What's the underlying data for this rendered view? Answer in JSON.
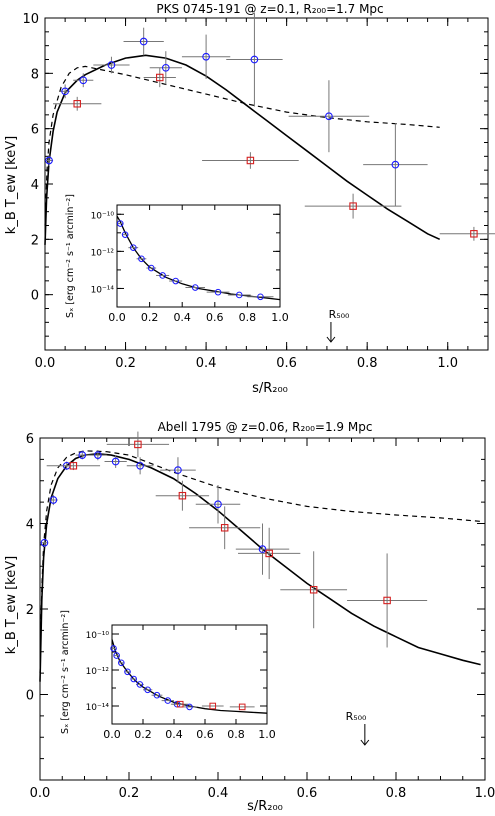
{
  "chart_data": [
    {
      "type": "scatter",
      "title": "PKS 0745-191 @ z=0.1, R₂₀₀=1.7 Mpc",
      "xlabel": "s/R₂₀₀",
      "ylabel": "k_B T_ew [keV]",
      "xlim": [
        0,
        1.1
      ],
      "ylim": [
        -2,
        10
      ],
      "x_ticks": [
        0.0,
        0.2,
        0.4,
        0.6,
        0.8,
        1.0
      ],
      "x_tick_labels": [
        "0.0",
        "0.2",
        "0.4",
        "0.6",
        "0.8",
        "1.0"
      ],
      "y_ticks": [
        0,
        2,
        4,
        6,
        8,
        10
      ],
      "y_tick_labels": [
        "0",
        "2",
        "4",
        "6",
        "8",
        "10"
      ],
      "annotation": {
        "text": "R₅₀₀",
        "x": 0.71
      },
      "series": [
        {
          "color": "#1a1aff",
          "marker": "circle",
          "points": [
            {
              "x": 0.01,
              "y": 4.85,
              "xerr": 0.01,
              "yerr": 0.2
            },
            {
              "x": 0.05,
              "y": 7.35,
              "xerr": 0.012,
              "yerr": 0.25
            },
            {
              "x": 0.095,
              "y": 7.75,
              "xerr": 0.025,
              "yerr": 0.25
            },
            {
              "x": 0.165,
              "y": 8.3,
              "xerr": 0.045,
              "yerr": 0.3
            },
            {
              "x": 0.245,
              "y": 9.15,
              "xerr": 0.05,
              "yerr": 0.5
            },
            {
              "x": 0.3,
              "y": 8.2,
              "xerr": 0.04,
              "yerr": 0.6
            },
            {
              "x": 0.4,
              "y": 8.6,
              "xerr": 0.06,
              "yerr": 0.8
            },
            {
              "x": 0.52,
              "y": 8.5,
              "xerr": 0.07,
              "yerr": 1.7
            },
            {
              "x": 0.705,
              "y": 6.45,
              "xerr": 0.1,
              "yerr": 1.3
            },
            {
              "x": 0.87,
              "y": 4.7,
              "xerr": 0.08,
              "yerr": 1.5
            }
          ]
        },
        {
          "color": "#d42020",
          "marker": "square",
          "points": [
            {
              "x": 0.08,
              "y": 6.9,
              "xerr": 0.06,
              "yerr": 0.25
            },
            {
              "x": 0.285,
              "y": 7.85,
              "xerr": 0.04,
              "yerr": 0.35
            },
            {
              "x": 0.51,
              "y": 4.85,
              "xerr": 0.12,
              "yerr": 0.3
            },
            {
              "x": 0.765,
              "y": 3.2,
              "xerr": 0.12,
              "yerr": 0.45
            },
            {
              "x": 1.065,
              "y": 2.2,
              "xerr": 0.085,
              "yerr": 0.25
            }
          ]
        }
      ],
      "model_solid": [
        [
          0.0,
          1.8
        ],
        [
          0.004,
          3.5
        ],
        [
          0.01,
          4.8
        ],
        [
          0.02,
          5.9
        ],
        [
          0.03,
          6.6
        ],
        [
          0.05,
          7.3
        ],
        [
          0.08,
          7.75
        ],
        [
          0.1,
          7.95
        ],
        [
          0.15,
          8.3
        ],
        [
          0.2,
          8.55
        ],
        [
          0.25,
          8.65
        ],
        [
          0.3,
          8.55
        ],
        [
          0.35,
          8.3
        ],
        [
          0.4,
          7.9
        ],
        [
          0.45,
          7.4
        ],
        [
          0.5,
          6.85
        ],
        [
          0.55,
          6.3
        ],
        [
          0.6,
          5.75
        ],
        [
          0.65,
          5.2
        ],
        [
          0.7,
          4.65
        ],
        [
          0.75,
          4.1
        ],
        [
          0.8,
          3.6
        ],
        [
          0.85,
          3.1
        ],
        [
          0.9,
          2.65
        ],
        [
          0.95,
          2.2
        ],
        [
          0.98,
          2.0
        ]
      ],
      "model_dashed": [
        [
          0.0,
          2.5
        ],
        [
          0.005,
          4.5
        ],
        [
          0.01,
          5.5
        ],
        [
          0.02,
          6.5
        ],
        [
          0.04,
          7.5
        ],
        [
          0.06,
          8.0
        ],
        [
          0.08,
          8.2
        ],
        [
          0.1,
          8.25
        ],
        [
          0.15,
          8.1
        ],
        [
          0.2,
          7.95
        ],
        [
          0.3,
          7.6
        ],
        [
          0.4,
          7.25
        ],
        [
          0.5,
          6.9
        ],
        [
          0.6,
          6.6
        ],
        [
          0.7,
          6.4
        ],
        [
          0.8,
          6.25
        ],
        [
          0.9,
          6.15
        ],
        [
          0.98,
          6.05
        ]
      ],
      "inset": {
        "xlim": [
          0,
          1
        ],
        "ylim_log": [
          -15,
          -9.5
        ],
        "ylabel": "Sₓ [erg cm⁻² s⁻¹ arcmin⁻²]",
        "x_ticks": [
          0.0,
          0.2,
          0.4,
          0.6,
          0.8,
          1.0
        ],
        "x_tick_labels": [
          "0.0",
          "0.2",
          "0.4",
          "0.6",
          "0.8",
          "1.0"
        ],
        "y_ticks": [
          -10,
          -12,
          -14
        ],
        "y_tick_labels": [
          "10⁻¹⁰",
          "10⁻¹²",
          "10⁻¹⁴"
        ],
        "points": [
          {
            "x": 0.02,
            "y": -10.5,
            "xerr": 0.02
          },
          {
            "x": 0.05,
            "y": -11.1,
            "xerr": 0.02
          },
          {
            "x": 0.1,
            "y": -11.8,
            "xerr": 0.03
          },
          {
            "x": 0.15,
            "y": -12.4,
            "xerr": 0.03
          },
          {
            "x": 0.21,
            "y": -12.9,
            "xerr": 0.03
          },
          {
            "x": 0.28,
            "y": -13.3,
            "xerr": 0.04
          },
          {
            "x": 0.36,
            "y": -13.6,
            "xerr": 0.04
          },
          {
            "x": 0.48,
            "y": -13.95,
            "xerr": 0.06
          },
          {
            "x": 0.62,
            "y": -14.2,
            "xerr": 0.07
          },
          {
            "x": 0.75,
            "y": -14.35,
            "xerr": 0.07
          },
          {
            "x": 0.88,
            "y": -14.45,
            "xerr": 0.08
          }
        ],
        "model": [
          [
            0.0,
            -10.1
          ],
          [
            0.02,
            -10.4
          ],
          [
            0.05,
            -11.0
          ],
          [
            0.1,
            -11.8
          ],
          [
            0.15,
            -12.4
          ],
          [
            0.2,
            -12.85
          ],
          [
            0.3,
            -13.4
          ],
          [
            0.4,
            -13.75
          ],
          [
            0.5,
            -14.0
          ],
          [
            0.6,
            -14.15
          ],
          [
            0.7,
            -14.3
          ],
          [
            0.8,
            -14.4
          ],
          [
            0.9,
            -14.5
          ],
          [
            1.0,
            -14.6
          ]
        ]
      }
    },
    {
      "type": "scatter",
      "title": "Abell 1795 @ z=0.06, R₂₀₀=1.9 Mpc",
      "xlabel": "s/R₂₀₀",
      "ylabel": "k_B T_ew [keV]",
      "xlim": [
        0,
        1.0
      ],
      "ylim": [
        -2,
        6
      ],
      "x_ticks": [
        0.0,
        0.2,
        0.4,
        0.6,
        0.8,
        1.0
      ],
      "x_tick_labels": [
        "0.0",
        "0.2",
        "0.4",
        "0.6",
        "0.8",
        "1.0"
      ],
      "y_ticks": [
        0,
        2,
        4,
        6
      ],
      "y_tick_labels": [
        "0",
        "2",
        "4",
        "6"
      ],
      "annotation": {
        "text": "R₅₀₀",
        "x": 0.73
      },
      "series": [
        {
          "color": "#1a1aff",
          "marker": "circle",
          "points": [
            {
              "x": 0.01,
              "y": 3.55,
              "xerr": 0.007,
              "yerr": 0.1
            },
            {
              "x": 0.03,
              "y": 4.55,
              "xerr": 0.01,
              "yerr": 0.12
            },
            {
              "x": 0.06,
              "y": 5.35,
              "xerr": 0.012,
              "yerr": 0.1
            },
            {
              "x": 0.095,
              "y": 5.6,
              "xerr": 0.015,
              "yerr": 0.1
            },
            {
              "x": 0.13,
              "y": 5.6,
              "xerr": 0.02,
              "yerr": 0.12
            },
            {
              "x": 0.17,
              "y": 5.45,
              "xerr": 0.025,
              "yerr": 0.15
            },
            {
              "x": 0.225,
              "y": 5.35,
              "xerr": 0.03,
              "yerr": 0.2
            },
            {
              "x": 0.31,
              "y": 5.25,
              "xerr": 0.04,
              "yerr": 0.3
            },
            {
              "x": 0.4,
              "y": 4.45,
              "xerr": 0.05,
              "yerr": 0.45
            },
            {
              "x": 0.5,
              "y": 3.4,
              "xerr": 0.06,
              "yerr": 0.6
            }
          ]
        },
        {
          "color": "#d42020",
          "marker": "square",
          "points": [
            {
              "x": 0.075,
              "y": 5.35,
              "xerr": 0.06,
              "yerr": 0.1
            },
            {
              "x": 0.22,
              "y": 5.85,
              "xerr": 0.07,
              "yerr": 0.3
            },
            {
              "x": 0.32,
              "y": 4.65,
              "xerr": 0.06,
              "yerr": 0.35
            },
            {
              "x": 0.415,
              "y": 3.9,
              "xerr": 0.08,
              "yerr": 0.5
            },
            {
              "x": 0.515,
              "y": 3.3,
              "xerr": 0.07,
              "yerr": 0.6
            },
            {
              "x": 0.615,
              "y": 2.45,
              "xerr": 0.075,
              "yerr": 0.9
            },
            {
              "x": 0.78,
              "y": 2.2,
              "xerr": 0.09,
              "yerr": 1.1
            }
          ]
        }
      ],
      "model_solid": [
        [
          0.0,
          0.3
        ],
        [
          0.004,
          2.2
        ],
        [
          0.008,
          3.2
        ],
        [
          0.015,
          4.0
        ],
        [
          0.025,
          4.6
        ],
        [
          0.04,
          5.05
        ],
        [
          0.06,
          5.35
        ],
        [
          0.08,
          5.52
        ],
        [
          0.1,
          5.6
        ],
        [
          0.13,
          5.63
        ],
        [
          0.16,
          5.6
        ],
        [
          0.2,
          5.5
        ],
        [
          0.25,
          5.3
        ],
        [
          0.3,
          5.05
        ],
        [
          0.35,
          4.7
        ],
        [
          0.4,
          4.3
        ],
        [
          0.45,
          3.85
        ],
        [
          0.5,
          3.4
        ],
        [
          0.55,
          3.0
        ],
        [
          0.6,
          2.6
        ],
        [
          0.65,
          2.25
        ],
        [
          0.7,
          1.9
        ],
        [
          0.75,
          1.6
        ],
        [
          0.8,
          1.35
        ],
        [
          0.85,
          1.1
        ],
        [
          0.9,
          0.95
        ],
        [
          0.95,
          0.8
        ],
        [
          0.99,
          0.7
        ]
      ],
      "model_dashed": [
        [
          0.0,
          0.5
        ],
        [
          0.004,
          2.5
        ],
        [
          0.008,
          3.5
        ],
        [
          0.015,
          4.3
        ],
        [
          0.025,
          4.9
        ],
        [
          0.04,
          5.3
        ],
        [
          0.06,
          5.55
        ],
        [
          0.08,
          5.65
        ],
        [
          0.1,
          5.7
        ],
        [
          0.15,
          5.68
        ],
        [
          0.2,
          5.6
        ],
        [
          0.25,
          5.4
        ],
        [
          0.3,
          5.2
        ],
        [
          0.4,
          4.85
        ],
        [
          0.5,
          4.6
        ],
        [
          0.6,
          4.4
        ],
        [
          0.7,
          4.28
        ],
        [
          0.8,
          4.2
        ],
        [
          0.9,
          4.13
        ],
        [
          0.99,
          4.05
        ]
      ],
      "inset": {
        "xlim": [
          0,
          1
        ],
        "ylim_log": [
          -15,
          -9.5
        ],
        "ylabel": "Sₓ [erg cm⁻² s⁻¹ arcmin⁻²]",
        "x_ticks": [
          0.0,
          0.2,
          0.4,
          0.6,
          0.8,
          1.0
        ],
        "x_tick_labels": [
          "0.0",
          "0.2",
          "0.4",
          "0.6",
          "0.8",
          "1.0"
        ],
        "y_ticks": [
          -10,
          -12,
          -14
        ],
        "y_tick_labels": [
          "10⁻¹⁰",
          "10⁻¹²",
          "10⁻¹⁴"
        ],
        "points": [
          {
            "x": 0.01,
            "y": -10.8,
            "xerr": 0.01
          },
          {
            "x": 0.03,
            "y": -11.2,
            "xerr": 0.015
          },
          {
            "x": 0.06,
            "y": -11.6,
            "xerr": 0.015
          },
          {
            "x": 0.1,
            "y": -12.1,
            "xerr": 0.02
          },
          {
            "x": 0.14,
            "y": -12.5,
            "xerr": 0.02
          },
          {
            "x": 0.18,
            "y": -12.8,
            "xerr": 0.025
          },
          {
            "x": 0.23,
            "y": -13.1,
            "xerr": 0.03
          },
          {
            "x": 0.29,
            "y": -13.4,
            "xerr": 0.035
          },
          {
            "x": 0.36,
            "y": -13.7,
            "xerr": 0.04
          },
          {
            "x": 0.42,
            "y": -13.9,
            "xerr": 0.04
          },
          {
            "x": 0.5,
            "y": -14.05,
            "xerr": 0.05
          }
        ],
        "squares": [
          {
            "x": 0.44,
            "y": -13.9,
            "xerr": 0.05
          },
          {
            "x": 0.65,
            "y": -14.0,
            "xerr": 0.07
          },
          {
            "x": 0.84,
            "y": -14.05,
            "xerr": 0.08
          }
        ],
        "model": [
          [
            0.0,
            -10.3
          ],
          [
            0.02,
            -10.9
          ],
          [
            0.05,
            -11.5
          ],
          [
            0.1,
            -12.1
          ],
          [
            0.15,
            -12.6
          ],
          [
            0.2,
            -12.95
          ],
          [
            0.3,
            -13.45
          ],
          [
            0.4,
            -13.8
          ],
          [
            0.5,
            -14.0
          ],
          [
            0.6,
            -14.15
          ],
          [
            0.7,
            -14.25
          ],
          [
            0.8,
            -14.3
          ],
          [
            0.9,
            -14.35
          ],
          [
            1.0,
            -14.4
          ]
        ]
      }
    }
  ]
}
